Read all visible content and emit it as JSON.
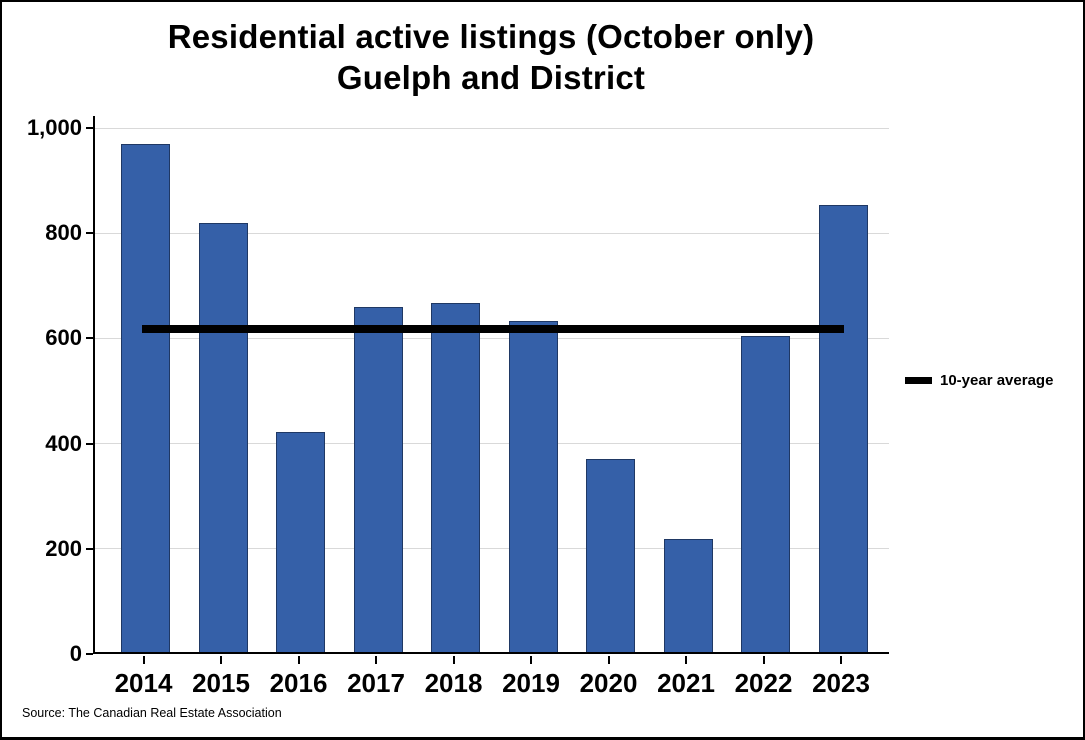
{
  "chart_data": {
    "type": "bar",
    "title": "Residential active listings (October only) Guelph and District",
    "title_lines": [
      "Residential active listings (October only)",
      "Guelph and District"
    ],
    "categories": [
      "2014",
      "2015",
      "2016",
      "2017",
      "2018",
      "2019",
      "2020",
      "2021",
      "2022",
      "2023"
    ],
    "series": [
      {
        "name": "Residential active listings",
        "values": [
          965,
          815,
          418,
          655,
          663,
          630,
          367,
          215,
          600,
          850
        ]
      }
    ],
    "average_line": {
      "label": "10-year average",
      "value": 618
    },
    "xlabel": "",
    "ylabel": "",
    "ylim": [
      0,
      1000
    ],
    "ytick_interval": 200,
    "ytick_labels": [
      "0",
      "200",
      "400",
      "600",
      "800",
      "1,000"
    ],
    "grid": "horizontal-light",
    "legend": {
      "label": "10-year average",
      "position": "right-middle"
    },
    "colors": {
      "bar_fill": "#3560a8",
      "bar_border": "#1f3864",
      "average_line": "#000000",
      "gridline": "#d9d9d9",
      "axis": "#000000",
      "text": "#000000",
      "background": "#ffffff"
    }
  },
  "source_note": "Source: The Canadian Real Estate Association"
}
